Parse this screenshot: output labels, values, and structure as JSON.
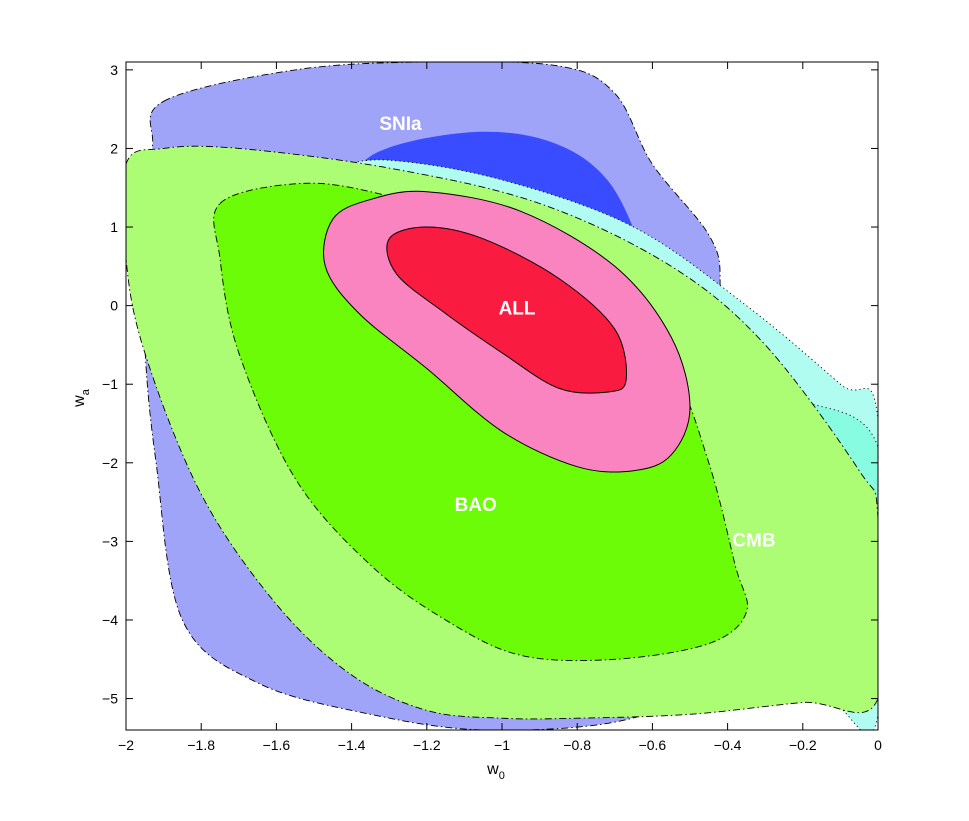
{
  "chart_data": {
    "type": "contour",
    "xlabel": "w",
    "xlabel_sub": "0",
    "ylabel": "w",
    "ylabel_sub": "a",
    "xlim": [
      -2,
      0
    ],
    "ylim": [
      -5.4,
      3.1
    ],
    "xticks": [
      -2,
      -1.8,
      -1.6,
      -1.4,
      -1.2,
      -1,
      -0.8,
      -0.6,
      -0.4,
      -0.2,
      0
    ],
    "xtick_labels": [
      "−2",
      "−1.8",
      "−1.6",
      "−1.4",
      "−1.2",
      "−1",
      "−0.8",
      "−0.6",
      "−0.4",
      "−0.2",
      "0"
    ],
    "yticks": [
      3,
      2,
      1,
      0,
      -1,
      -2,
      -3,
      -4,
      -5
    ],
    "ytick_labels": [
      "3",
      "2",
      "1",
      "0",
      "−1",
      "−2",
      "−3",
      "−4",
      "−5"
    ],
    "grid": false,
    "regions": [
      {
        "label": "SNIa",
        "label_at": [
          -1.27,
          2.3
        ],
        "contours": [
          {
            "level": "outer",
            "color": "#a0a4f8",
            "border": "dashdot",
            "points": [
              [
                -1.9,
                2.6
              ],
              [
                -1.55,
                3.0
              ],
              [
                -1.2,
                3.1
              ],
              [
                -0.85,
                3.05
              ],
              [
                -0.7,
                2.7
              ],
              [
                -0.6,
                1.8
              ],
              [
                -0.45,
                0.9
              ],
              [
                -0.42,
                0.3
              ],
              [
                -0.45,
                -0.7
              ],
              [
                -0.5,
                -1.8
              ],
              [
                -0.5,
                -3.0
              ],
              [
                -0.45,
                -4.2
              ],
              [
                -0.5,
                -4.9
              ],
              [
                -0.7,
                -5.3
              ],
              [
                -1.05,
                -5.4
              ],
              [
                -1.35,
                -5.2
              ],
              [
                -1.65,
                -4.8
              ],
              [
                -1.85,
                -4.0
              ],
              [
                -1.92,
                -2.0
              ],
              [
                -1.95,
                -0.5
              ],
              [
                -1.95,
                1.0
              ],
              [
                -1.93,
                2.0
              ]
            ]
          },
          {
            "level": "inner",
            "color": "#3a4cff",
            "border": "none",
            "points": [
              [
                -1.35,
                1.9
              ],
              [
                -1.1,
                2.2
              ],
              [
                -0.88,
                2.1
              ],
              [
                -0.72,
                1.6
              ],
              [
                -0.62,
                0.6
              ],
              [
                -0.58,
                -0.2
              ],
              [
                -0.65,
                -1.2
              ],
              [
                -0.8,
                -2.5
              ],
              [
                -0.85,
                -3.6
              ],
              [
                -0.9,
                -4.2
              ],
              [
                -1.0,
                -4.7
              ],
              [
                -1.15,
                -4.7
              ],
              [
                -1.3,
                -4.2
              ],
              [
                -1.38,
                -3.0
              ],
              [
                -1.42,
                -1.5
              ],
              [
                -1.43,
                0.0
              ],
              [
                -1.42,
                1.2
              ]
            ]
          }
        ]
      },
      {
        "label": "CMB",
        "label_at": [
          -0.33,
          -3.0
        ],
        "contours": [
          {
            "level": "outer",
            "color": "#b0fcf0",
            "border": "dotted",
            "points": [
              [
                -1.55,
                1.55
              ],
              [
                -1.45,
                1.75
              ],
              [
                -1.3,
                1.85
              ],
              [
                -1.0,
                1.6
              ],
              [
                -0.65,
                1.0
              ],
              [
                -0.35,
                0.0
              ],
              [
                -0.1,
                -1.0
              ],
              [
                0.0,
                -1.45
              ],
              [
                0.0,
                -5.2
              ],
              [
                -0.12,
                -5.05
              ],
              [
                -0.3,
                -4.6
              ],
              [
                -0.5,
                -4.0
              ],
              [
                -0.75,
                -3.0
              ],
              [
                -0.95,
                -2.2
              ],
              [
                -1.15,
                -1.4
              ],
              [
                -1.35,
                -0.6
              ],
              [
                -1.5,
                0.3
              ],
              [
                -1.57,
                1.0
              ]
            ]
          },
          {
            "level": "inner",
            "color": "#88fce0",
            "border": "dotted",
            "points": [
              [
                -1.35,
                1.3
              ],
              [
                -1.1,
                1.35
              ],
              [
                -0.8,
                0.8
              ],
              [
                -0.5,
                -0.1
              ],
              [
                -0.25,
                -1.1
              ],
              [
                0.0,
                -1.8
              ],
              [
                0.0,
                -4.65
              ],
              [
                -0.15,
                -4.3
              ],
              [
                -0.35,
                -3.6
              ],
              [
                -0.6,
                -2.7
              ],
              [
                -0.85,
                -1.8
              ],
              [
                -1.1,
                -0.9
              ],
              [
                -1.3,
                0.0
              ],
              [
                -1.4,
                0.8
              ]
            ]
          }
        ]
      },
      {
        "label": "BAO",
        "label_at": [
          -1.07,
          -2.55
        ],
        "contours": [
          {
            "level": "outer",
            "color": "#acfc74",
            "border": "dashdot",
            "points": [
              [
                -2.0,
                1.8
              ],
              [
                -1.9,
                2.0
              ],
              [
                -1.7,
                2.0
              ],
              [
                -1.3,
                1.75
              ],
              [
                -0.9,
                1.3
              ],
              [
                -0.55,
                0.5
              ],
              [
                -0.3,
                -0.5
              ],
              [
                -0.05,
                -2.1
              ],
              [
                0.0,
                -2.7
              ],
              [
                0.0,
                -5.0
              ],
              [
                -0.2,
                -5.05
              ],
              [
                -0.5,
                -5.2
              ],
              [
                -0.8,
                -5.25
              ],
              [
                -1.0,
                -5.25
              ],
              [
                -1.2,
                -5.15
              ],
              [
                -1.4,
                -4.7
              ],
              [
                -1.6,
                -3.8
              ],
              [
                -1.8,
                -2.4
              ],
              [
                -1.95,
                -0.6
              ],
              [
                -2.0,
                0.6
              ]
            ]
          },
          {
            "level": "inner",
            "color": "#6cfc08",
            "border": "dashdot",
            "points": [
              [
                -1.75,
                1.3
              ],
              [
                -1.55,
                1.55
              ],
              [
                -1.35,
                1.45
              ],
              [
                -1.05,
                1.0
              ],
              [
                -0.75,
                0.2
              ],
              [
                -0.55,
                -0.8
              ],
              [
                -0.45,
                -2.0
              ],
              [
                -0.38,
                -3.3
              ],
              [
                -0.35,
                -3.9
              ],
              [
                -0.45,
                -4.3
              ],
              [
                -0.7,
                -4.5
              ],
              [
                -0.95,
                -4.45
              ],
              [
                -1.15,
                -4.0
              ],
              [
                -1.35,
                -3.3
              ],
              [
                -1.55,
                -2.2
              ],
              [
                -1.7,
                -0.6
              ],
              [
                -1.75,
                0.6
              ]
            ]
          }
        ]
      },
      {
        "label": "ALL",
        "label_at": [
          -0.96,
          -0.05
        ],
        "contours": [
          {
            "level": "outer",
            "color": "#fa84c0",
            "border": "solid",
            "points": [
              [
                -1.45,
                1.1
              ],
              [
                -1.35,
                1.35
              ],
              [
                -1.2,
                1.45
              ],
              [
                -0.95,
                1.2
              ],
              [
                -0.7,
                0.5
              ],
              [
                -0.55,
                -0.4
              ],
              [
                -0.5,
                -1.3
              ],
              [
                -0.55,
                -1.9
              ],
              [
                -0.65,
                -2.1
              ],
              [
                -0.8,
                -2.05
              ],
              [
                -1.0,
                -1.6
              ],
              [
                -1.2,
                -0.8
              ],
              [
                -1.38,
                -0.1
              ],
              [
                -1.47,
                0.5
              ]
            ]
          },
          {
            "level": "inner",
            "color": "#fa1c40",
            "border": "solid",
            "points": [
              [
                -1.3,
                0.85
              ],
              [
                -1.2,
                1.0
              ],
              [
                -1.05,
                0.85
              ],
              [
                -0.85,
                0.35
              ],
              [
                -0.7,
                -0.3
              ],
              [
                -0.67,
                -0.95
              ],
              [
                -0.72,
                -1.1
              ],
              [
                -0.85,
                -1.05
              ],
              [
                -1.0,
                -0.6
              ],
              [
                -1.15,
                -0.1
              ],
              [
                -1.28,
                0.4
              ]
            ]
          }
        ]
      }
    ]
  }
}
